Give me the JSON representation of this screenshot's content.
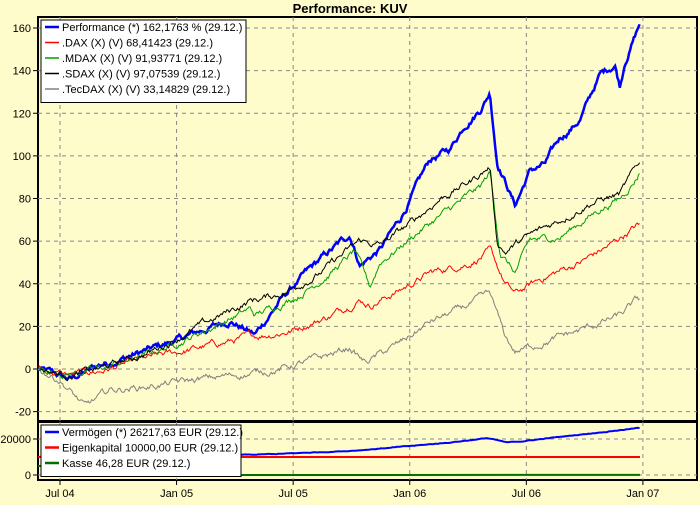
{
  "chart_data": [
    {
      "type": "line",
      "title": "Performance: KUV",
      "xlabel": "",
      "ylabel": "",
      "x_unit": "months since Jan 2004",
      "xlim": [
        4.87,
        38.7
      ],
      "ylim": [
        -25,
        165
      ],
      "yticks": [
        -20,
        0,
        20,
        40,
        60,
        80,
        100,
        120,
        140,
        160
      ],
      "xticks": [
        {
          "m": 6,
          "label": "Jul 04"
        },
        {
          "m": 12,
          "label": "Jan 05"
        },
        {
          "m": 18,
          "label": "Jul 05"
        },
        {
          "m": 24,
          "label": "Jan 06"
        },
        {
          "m": 30,
          "label": "Jul 06"
        },
        {
          "m": 36,
          "label": "Jan 07"
        }
      ],
      "grid": true,
      "legend_position": "top-left",
      "series": [
        {
          "name": "Performance (*) 162,1763 % (29.12.)",
          "color": "#0000ff",
          "width": 2.5,
          "points": [
            [
              4.87,
              0
            ],
            [
              6.51,
              -5
            ],
            [
              8.06,
              2
            ],
            [
              10.63,
              9
            ],
            [
              12.18,
              14
            ],
            [
              14.75,
              23
            ],
            [
              16.04,
              16
            ],
            [
              17.32,
              32
            ],
            [
              18.35,
              42
            ],
            [
              19.38,
              51
            ],
            [
              20.93,
              63
            ],
            [
              21.44,
              49
            ],
            [
              22.47,
              56
            ],
            [
              23.5,
              70
            ],
            [
              24.27,
              84
            ],
            [
              25.04,
              98
            ],
            [
              26.07,
              103
            ],
            [
              26.84,
              115
            ],
            [
              27.62,
              122
            ],
            [
              28.13,
              130
            ],
            [
              28.49,
              98
            ],
            [
              28.9,
              89
            ],
            [
              29.42,
              77
            ],
            [
              30.19,
              93
            ],
            [
              30.96,
              96
            ],
            [
              31.73,
              108
            ],
            [
              32.76,
              117
            ],
            [
              33.79,
              138
            ],
            [
              34.56,
              143
            ],
            [
              34.82,
              133
            ],
            [
              35.08,
              145
            ],
            [
              35.85,
              162.18
            ]
          ]
        },
        {
          "name": ".DAX (X) (V) 68,41423 (29.12.)",
          "color": "#ff0000",
          "width": 1,
          "points": [
            [
              4.87,
              0
            ],
            [
              6.51,
              -3
            ],
            [
              8.06,
              -1
            ],
            [
              10.63,
              5
            ],
            [
              13.2,
              10
            ],
            [
              15.78,
              15
            ],
            [
              17.84,
              18
            ],
            [
              19.9,
              25
            ],
            [
              21.44,
              33
            ],
            [
              21.95,
              30
            ],
            [
              23.5,
              37
            ],
            [
              25.04,
              45
            ],
            [
              27.1,
              50
            ],
            [
              28.13,
              55
            ],
            [
              28.9,
              40
            ],
            [
              29.42,
              35
            ],
            [
              30.7,
              42
            ],
            [
              32.76,
              50
            ],
            [
              34.31,
              58
            ],
            [
              35.85,
              68.41
            ]
          ]
        },
        {
          "name": ".MDAX (X) (V) 91,93771 (29.12.)",
          "color": "#00a000",
          "width": 1,
          "points": [
            [
              4.87,
              0
            ],
            [
              6.51,
              -2
            ],
            [
              8.06,
              0
            ],
            [
              10.63,
              7
            ],
            [
              13.2,
              17
            ],
            [
              15.78,
              28
            ],
            [
              16.04,
              25
            ],
            [
              18.35,
              35
            ],
            [
              19.9,
              45
            ],
            [
              21.18,
              55
            ],
            [
              21.95,
              38
            ],
            [
              22.47,
              50
            ],
            [
              24.53,
              65
            ],
            [
              26.07,
              75
            ],
            [
              27.62,
              85
            ],
            [
              28.13,
              92
            ],
            [
              28.65,
              55
            ],
            [
              29.42,
              45
            ],
            [
              30.19,
              60
            ],
            [
              31.73,
              62
            ],
            [
              33.79,
              75
            ],
            [
              34.82,
              80
            ],
            [
              35.85,
              91.94
            ]
          ]
        },
        {
          "name": ".SDAX (X) (V) 97,07539 (29.12.)",
          "color": "#000000",
          "width": 1,
          "points": [
            [
              4.87,
              0
            ],
            [
              6.51,
              -3
            ],
            [
              8.06,
              0
            ],
            [
              10.63,
              8
            ],
            [
              13.2,
              20
            ],
            [
              15.78,
              32
            ],
            [
              17.32,
              35
            ],
            [
              19.38,
              45
            ],
            [
              21.44,
              60
            ],
            [
              22.47,
              58
            ],
            [
              24.01,
              68
            ],
            [
              25.56,
              80
            ],
            [
              27.1,
              88
            ],
            [
              28.13,
              95
            ],
            [
              28.49,
              60
            ],
            [
              28.9,
              55
            ],
            [
              29.67,
              60
            ],
            [
              30.7,
              65
            ],
            [
              31.73,
              70
            ],
            [
              33.28,
              78
            ],
            [
              34.82,
              82
            ],
            [
              35.85,
              97.08
            ]
          ]
        },
        {
          "name": ".TecDAX (X) (V) 33,14829 (29.12.)",
          "color": "#808080",
          "width": 1,
          "points": [
            [
              4.87,
              0
            ],
            [
              6.0,
              -5
            ],
            [
              7.29,
              -18
            ],
            [
              8.57,
              -10
            ],
            [
              10.63,
              -8
            ],
            [
              13.2,
              -5
            ],
            [
              15.78,
              -2
            ],
            [
              17.32,
              0
            ],
            [
              19.38,
              5
            ],
            [
              20.93,
              10
            ],
            [
              21.7,
              3
            ],
            [
              23.5,
              12
            ],
            [
              25.04,
              22
            ],
            [
              26.59,
              28
            ],
            [
              28.13,
              35
            ],
            [
              28.9,
              15
            ],
            [
              29.42,
              8
            ],
            [
              30.7,
              12
            ],
            [
              32.76,
              18
            ],
            [
              34.82,
              25
            ],
            [
              35.85,
              33.15
            ]
          ]
        }
      ]
    },
    {
      "type": "line",
      "title": "",
      "ylim": [
        0,
        26000
      ],
      "yticks": [
        0,
        20000
      ],
      "legend_position": "top-left",
      "series": [
        {
          "name": "Vermögen (*) 26217,63 EUR (29.12.)",
          "color": "#0000ff",
          "width": 2,
          "points": [
            [
              4.87,
              10000
            ],
            [
              8,
              10500
            ],
            [
              12,
              11000
            ],
            [
              16,
              11200
            ],
            [
              18,
              12000
            ],
            [
              21,
              13500
            ],
            [
              24,
              16000
            ],
            [
              26,
              18000
            ],
            [
              28,
              20500
            ],
            [
              29,
              18000
            ],
            [
              30,
              19000
            ],
            [
              32,
              21500
            ],
            [
              34,
              24000
            ],
            [
              35.85,
              26217.63
            ]
          ]
        },
        {
          "name": "Eigenkapital 10000,00 EUR (29.12.)",
          "color": "#ff0000",
          "width": 2,
          "points": [
            [
              4.87,
              10000
            ],
            [
              35.85,
              10000
            ]
          ]
        },
        {
          "name": "Kasse 46,28 EUR (29.12.)",
          "color": "#007000",
          "width": 2,
          "points": [
            [
              4.87,
              5000
            ],
            [
              5.1,
              5000
            ],
            [
              5.1,
              0
            ],
            [
              13.3,
              0
            ],
            [
              13.5,
              800
            ],
            [
              13.7,
              0
            ],
            [
              35.85,
              46.28
            ]
          ]
        }
      ]
    }
  ]
}
